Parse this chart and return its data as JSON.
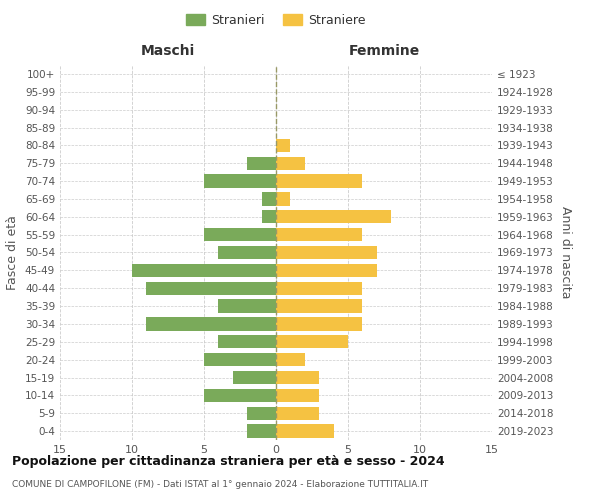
{
  "age_groups": [
    "0-4",
    "5-9",
    "10-14",
    "15-19",
    "20-24",
    "25-29",
    "30-34",
    "35-39",
    "40-44",
    "45-49",
    "50-54",
    "55-59",
    "60-64",
    "65-69",
    "70-74",
    "75-79",
    "80-84",
    "85-89",
    "90-94",
    "95-99",
    "100+"
  ],
  "birth_years": [
    "2019-2023",
    "2014-2018",
    "2009-2013",
    "2004-2008",
    "1999-2003",
    "1994-1998",
    "1989-1993",
    "1984-1988",
    "1979-1983",
    "1974-1978",
    "1969-1973",
    "1964-1968",
    "1959-1963",
    "1954-1958",
    "1949-1953",
    "1944-1948",
    "1939-1943",
    "1934-1938",
    "1929-1933",
    "1924-1928",
    "≤ 1923"
  ],
  "males": [
    2,
    2,
    5,
    3,
    5,
    4,
    9,
    4,
    9,
    10,
    4,
    5,
    1,
    1,
    5,
    2,
    0,
    0,
    0,
    0,
    0
  ],
  "females": [
    4,
    3,
    3,
    3,
    2,
    5,
    6,
    6,
    6,
    7,
    7,
    6,
    8,
    1,
    6,
    2,
    1,
    0,
    0,
    0,
    0
  ],
  "male_color": "#7aaa5a",
  "female_color": "#f5c242",
  "grid_color": "#cccccc",
  "center_line_color": "#999966",
  "bg_color": "#ffffff",
  "title": "Popolazione per cittadinanza straniera per età e sesso - 2024",
  "subtitle": "COMUNE DI CAMPOFILONE (FM) - Dati ISTAT al 1° gennaio 2024 - Elaborazione TUTTITALIA.IT",
  "xlabel_left": "Maschi",
  "xlabel_right": "Femmine",
  "ylabel_left": "Fasce di età",
  "ylabel_right": "Anni di nascita",
  "legend_males": "Stranieri",
  "legend_females": "Straniere",
  "xlim": 15
}
